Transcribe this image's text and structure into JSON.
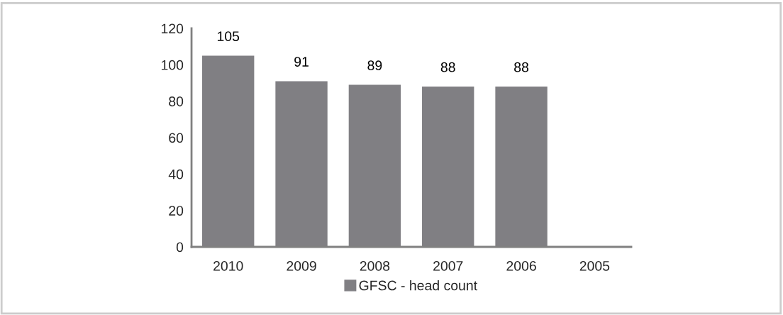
{
  "chart_data": {
    "type": "bar",
    "categories": [
      "2010",
      "2009",
      "2008",
      "2007",
      "2006",
      "2005"
    ],
    "series": [
      {
        "name": "GFSC - head count",
        "color": "#807f83",
        "values": [
          105,
          91,
          89,
          88,
          88,
          null
        ]
      }
    ],
    "ylim": [
      0,
      120
    ],
    "yticks": [
      0,
      20,
      40,
      60,
      80,
      100,
      120
    ],
    "data_labels": true,
    "grid": false,
    "legend": "bottom"
  }
}
